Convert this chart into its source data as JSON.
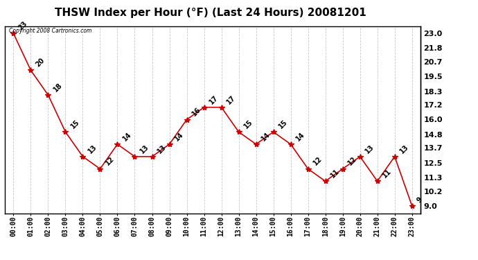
{
  "title": "THSW Index per Hour (°F) (Last 24 Hours) 20081201",
  "copyright_text": "Copyright 2008 Cartronics.com",
  "hours": [
    "00:00",
    "01:00",
    "02:00",
    "03:00",
    "04:00",
    "05:00",
    "06:00",
    "07:00",
    "08:00",
    "09:00",
    "10:00",
    "11:00",
    "12:00",
    "13:00",
    "14:00",
    "15:00",
    "16:00",
    "17:00",
    "18:00",
    "19:00",
    "20:00",
    "21:00",
    "22:00",
    "23:00"
  ],
  "values": [
    23,
    20,
    18,
    15,
    13,
    12,
    14,
    13,
    13,
    14,
    16,
    17,
    17,
    15,
    14,
    15,
    14,
    12,
    11,
    12,
    13,
    11,
    13,
    9
  ],
  "line_color": "#cc0000",
  "marker_color": "#cc0000",
  "background_color": "#ffffff",
  "grid_color": "#c8c8c8",
  "yticks": [
    9.0,
    10.2,
    11.3,
    12.5,
    13.7,
    14.8,
    16.0,
    17.2,
    18.3,
    19.5,
    20.7,
    21.8,
    23.0
  ],
  "ylim": [
    8.4,
    23.6
  ],
  "title_fontsize": 11,
  "label_fontsize": 7,
  "annotation_fontsize": 7
}
